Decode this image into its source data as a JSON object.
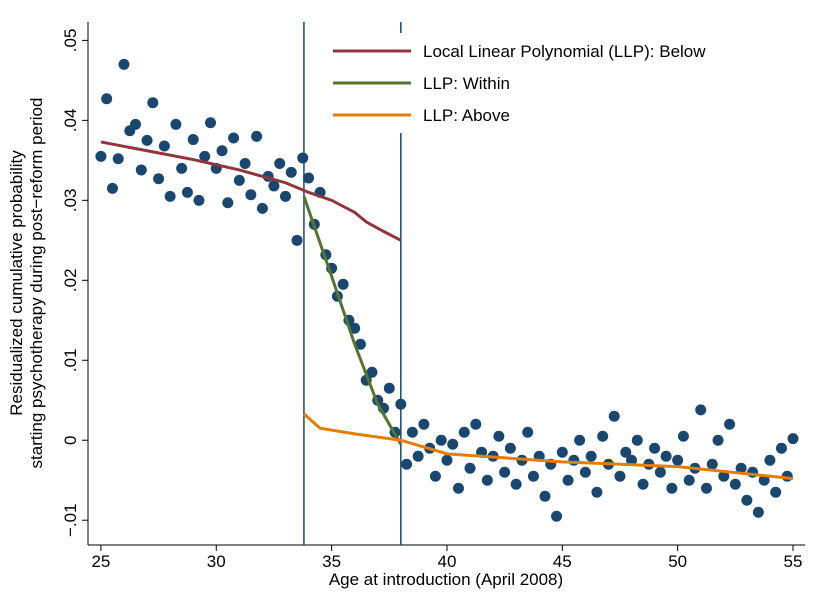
{
  "chart_data": {
    "type": "scatter",
    "xlabel": "Age at introduction (April 2008)",
    "ylabel": [
      "Residualized cumulative probability",
      "starting psychotherapy during post−reform period"
    ],
    "xlim": [
      24.44,
      55.52
    ],
    "ylim": [
      -0.0131,
      0.0523
    ],
    "xticks": [
      25,
      30,
      35,
      40,
      45,
      50,
      55
    ],
    "yticks": [
      {
        "value": -0.01,
        "label": "−.01"
      },
      0,
      {
        "value": 0.01,
        "label": ".01"
      },
      {
        "value": 0.02,
        "label": ".02"
      },
      {
        "value": 0.03,
        "label": ".03"
      },
      {
        "value": 0.04,
        "label": ".04"
      },
      {
        "value": 0.05,
        "label": ".05"
      }
    ],
    "vlines": [
      33.8,
      38
    ],
    "vline_color": "#1a476f",
    "legend_position": "upper right",
    "scatter": {
      "color": "#1a476f",
      "x": [
        25,
        25.25,
        25.5,
        25.75,
        26,
        26.25,
        26.5,
        26.75,
        27,
        27.25,
        27.5,
        27.75,
        28,
        28.25,
        28.5,
        28.75,
        29,
        29.25,
        29.5,
        29.75,
        30,
        30.25,
        30.5,
        30.75,
        31,
        31.25,
        31.5,
        31.75,
        32,
        32.25,
        32.5,
        32.75,
        33,
        33.25,
        33.5,
        33.75,
        34,
        34.25,
        34.5,
        34.75,
        35,
        35.25,
        35.5,
        35.75,
        36,
        36.25,
        36.5,
        36.75,
        37,
        37.25,
        37.5,
        37.75,
        38,
        38.25,
        38.5,
        38.75,
        39,
        39.25,
        39.5,
        39.75,
        40,
        40.25,
        40.5,
        40.75,
        41,
        41.25,
        41.5,
        41.75,
        42,
        42.25,
        42.5,
        42.75,
        43,
        43.25,
        43.5,
        43.75,
        44,
        44.25,
        44.5,
        44.75,
        45,
        45.25,
        45.5,
        45.75,
        46,
        46.25,
        46.5,
        46.75,
        47,
        47.25,
        47.5,
        47.75,
        48,
        48.25,
        48.5,
        48.75,
        49,
        49.25,
        49.5,
        49.75,
        50,
        50.25,
        50.5,
        50.75,
        51,
        51.25,
        51.5,
        51.75,
        52,
        52.25,
        52.5,
        52.75,
        53,
        53.25,
        53.5,
        53.75,
        54,
        54.25,
        54.5,
        54.75,
        55
      ],
      "values": [
        0.0355,
        0.0427,
        0.0315,
        0.0352,
        0.047,
        0.0387,
        0.0395,
        0.0338,
        0.0375,
        0.0422,
        0.0327,
        0.0368,
        0.0305,
        0.0395,
        0.034,
        0.031,
        0.0376,
        0.03,
        0.0355,
        0.0397,
        0.034,
        0.0362,
        0.0297,
        0.0378,
        0.0325,
        0.0346,
        0.0307,
        0.038,
        0.029,
        0.033,
        0.0318,
        0.0346,
        0.0305,
        0.0335,
        0.025,
        0.0353,
        0.0328,
        0.027,
        0.031,
        0.0232,
        0.0215,
        0.018,
        0.0195,
        0.015,
        0.014,
        0.012,
        0.0075,
        0.0085,
        0.005,
        0.004,
        0.0065,
        0.001,
        0.0045,
        -0.003,
        0.001,
        -0.002,
        0.002,
        -0.001,
        -0.0045,
        0,
        -0.0025,
        -0.0005,
        -0.006,
        0.001,
        -0.0035,
        0.002,
        -0.0015,
        -0.005,
        -0.002,
        0.0005,
        -0.004,
        -0.001,
        -0.0055,
        -0.0025,
        0.001,
        -0.0045,
        -0.002,
        -0.007,
        -0.003,
        -0.0095,
        -0.0015,
        -0.005,
        -0.0025,
        0,
        -0.004,
        -0.002,
        -0.0065,
        0.0005,
        -0.003,
        0.003,
        -0.0045,
        -0.0015,
        -0.0025,
        0,
        -0.0055,
        -0.003,
        -0.001,
        -0.004,
        -0.002,
        -0.006,
        -0.0025,
        0.0005,
        -0.005,
        -0.0035,
        0.0038,
        -0.006,
        -0.003,
        0,
        -0.0045,
        0.002,
        -0.0055,
        -0.0035,
        -0.0075,
        -0.004,
        -0.009,
        -0.005,
        -0.0025,
        -0.0065,
        -0.001,
        -0.0045,
        0.0002
      ]
    },
    "series": [
      {
        "name": "Local Linear Polynomial (LLP): Below",
        "color": "#90353b",
        "x": [
          25,
          27,
          29,
          31,
          33,
          34,
          35,
          36,
          36.5,
          37,
          38
        ],
        "values": [
          0.0373,
          0.0362,
          0.0351,
          0.0338,
          0.0322,
          0.031,
          0.03,
          0.0285,
          0.0273,
          0.0265,
          0.025
        ]
      },
      {
        "name": "LLP: Within",
        "color": "#55752f",
        "x": [
          33.8,
          35,
          36,
          37,
          38
        ],
        "values": [
          0.0305,
          0.0205,
          0.012,
          0.0045,
          -0.0005
        ]
      },
      {
        "name": "LLP: Above",
        "color": "#e37e00",
        "x": [
          33.8,
          34.5,
          36,
          38,
          40,
          45,
          50,
          55
        ],
        "values": [
          0.0033,
          0.0015,
          0.0008,
          0,
          -0.0017,
          -0.0027,
          -0.0033,
          -0.0048
        ]
      }
    ]
  }
}
